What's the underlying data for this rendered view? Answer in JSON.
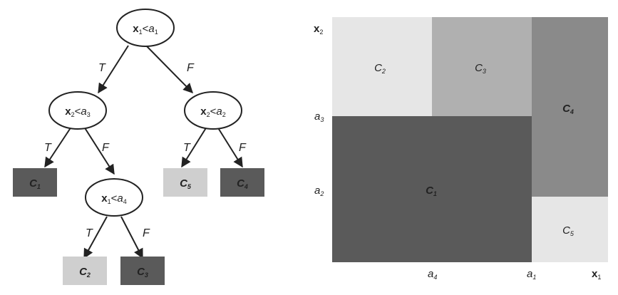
{
  "colors": {
    "dark": "#5a5a5a",
    "mid_dark": "#8a8a8a",
    "mid": "#b0b0b0",
    "light": "#e6e6e6",
    "leaf_light": "#cfcfcf",
    "text_dark": "#222222",
    "text_light": "#ffffff"
  },
  "tree": {
    "nodes": [
      {
        "id": "root",
        "var": "x",
        "sub": "1",
        "op": "<",
        "thr": "a",
        "thr_sub": "1"
      },
      {
        "id": "left",
        "var": "x",
        "sub": "2",
        "op": "<",
        "thr": "a",
        "thr_sub": "3"
      },
      {
        "id": "right",
        "var": "x",
        "sub": "2",
        "op": "<",
        "thr": "a",
        "thr_sub": "2"
      },
      {
        "id": "leftright",
        "var": "x",
        "sub": "1",
        "op": "<",
        "thr": "a",
        "thr_sub": "4"
      }
    ],
    "leaves": [
      {
        "id": "leaf-c1",
        "label": "C",
        "sub": "1",
        "shade": "dark"
      },
      {
        "id": "leaf-c5",
        "label": "C",
        "sub": "5",
        "shade": "leaf_light"
      },
      {
        "id": "leaf-c4",
        "label": "C",
        "sub": "4",
        "shade": "dark"
      },
      {
        "id": "leaf-c2",
        "label": "C",
        "sub": "2",
        "shade": "leaf_light"
      },
      {
        "id": "leaf-c3",
        "label": "C",
        "sub": "3",
        "shade": "dark"
      }
    ],
    "edge_labels": {
      "true": "T",
      "false": "F"
    }
  },
  "partition": {
    "regions": [
      {
        "id": "region-c2",
        "label": "C",
        "sub": "2",
        "shade": "light"
      },
      {
        "id": "region-c3",
        "label": "C",
        "sub": "3",
        "shade": "mid"
      },
      {
        "id": "region-c4",
        "label": "C",
        "sub": "4",
        "shade": "mid_dark"
      },
      {
        "id": "region-c1",
        "label": "C",
        "sub": "1",
        "shade": "dark"
      },
      {
        "id": "region-c5",
        "label": "C",
        "sub": "5",
        "shade": "light"
      }
    ],
    "y_axis": {
      "var": "x",
      "sub": "2",
      "ticks": [
        {
          "label": "a",
          "sub": "3"
        },
        {
          "label": "a",
          "sub": "2"
        }
      ]
    },
    "x_axis": {
      "var": "x",
      "sub": "1",
      "ticks": [
        {
          "label": "a",
          "sub": "4"
        },
        {
          "label": "a",
          "sub": "1"
        }
      ]
    }
  }
}
